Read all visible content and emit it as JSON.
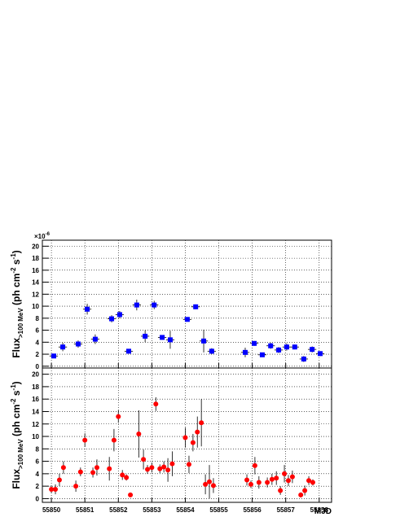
{
  "chart_data": [
    {
      "type": "scatter",
      "scale_label": [
        "×10",
        "-6"
      ],
      "ylabel": [
        {
          "text": "Flux"
        },
        {
          "text": ">100 MeV",
          "sub": true
        },
        {
          "text": " (ph cm"
        },
        {
          "text": "-2",
          "sup": true
        },
        {
          "text": " s"
        },
        {
          "text": "-1",
          "sup": true
        },
        {
          "text": ")"
        }
      ],
      "xlim": [
        55849.73,
        55858.37
      ],
      "ylim": [
        -0.3,
        21
      ],
      "xticks": [
        55850,
        55851,
        55852,
        55853,
        55854,
        55855,
        55856,
        55857,
        55858
      ],
      "yticks": [
        0,
        2,
        4,
        6,
        8,
        10,
        12,
        14,
        16,
        18,
        20
      ],
      "grid": true,
      "series": [
        {
          "color": "#0000ff",
          "marker": "square",
          "xerr": 0.125,
          "x": [
            55850.07,
            55850.34,
            55850.8,
            55851.07,
            55851.31,
            55851.8,
            55852.04,
            55852.31,
            55852.55,
            55852.8,
            55853.07,
            55853.31,
            55853.55,
            55854.06,
            55854.31,
            55854.55,
            55854.79,
            55855.79,
            55856.06,
            55856.3,
            55856.55,
            55856.79,
            55857.03,
            55857.27,
            55857.54,
            55857.79,
            55858.03
          ],
          "values": [
            1.7,
            3.2,
            3.7,
            9.5,
            4.5,
            7.9,
            8.6,
            2.5,
            10.2,
            5.0,
            10.2,
            4.8,
            4.4,
            7.8,
            9.9,
            4.2,
            2.5,
            2.3,
            3.8,
            1.9,
            3.4,
            2.7,
            3.2,
            3.2,
            1.2,
            2.8,
            2.1
          ],
          "errors": [
            0.3,
            0.7,
            0.6,
            0.9,
            0.8,
            0.6,
            0.6,
            0.3,
            0.9,
            1.0,
            0.7,
            0.4,
            1.5,
            0.3,
            0.4,
            1.9,
            0.5,
            0.8,
            0.4,
            0.3,
            0.5,
            0.5,
            0.6,
            0.4,
            0.5,
            0.5,
            0.4
          ]
        }
      ]
    },
    {
      "type": "scatter",
      "xlabel": "MJD",
      "ylabel": [
        {
          "text": "Flux"
        },
        {
          "text": ">100 MeV",
          "sub": true
        },
        {
          "text": " (ph cm"
        },
        {
          "text": "-2",
          "sup": true
        },
        {
          "text": " s"
        },
        {
          "text": "-1",
          "sup": true
        },
        {
          "text": ")"
        }
      ],
      "xlim": [
        55849.73,
        55858.37
      ],
      "ylim": [
        -0.6,
        21
      ],
      "xticks": [
        55850,
        55851,
        55852,
        55853,
        55854,
        55855,
        55856,
        55857,
        55858
      ],
      "yticks": [
        0,
        2,
        4,
        6,
        8,
        10,
        12,
        14,
        16,
        18,
        20
      ],
      "grid": true,
      "series": [
        {
          "color": "#ff0000",
          "marker": "circle",
          "x": [
            55850.0,
            55850.12,
            55850.24,
            55850.36,
            55850.73,
            55850.87,
            55851.0,
            55851.24,
            55851.36,
            55851.73,
            55851.87,
            55852.0,
            55852.12,
            55852.24,
            55852.36,
            55852.61,
            55852.75,
            55852.87,
            55853.0,
            55853.12,
            55853.24,
            55853.36,
            55853.48,
            55853.61,
            55854.0,
            55854.11,
            55854.23,
            55854.36,
            55854.48,
            55854.6,
            55854.72,
            55854.84,
            55855.84,
            55855.96,
            55856.08,
            55856.2,
            55856.45,
            55856.59,
            55856.72,
            55856.84,
            55856.96,
            55857.08,
            55857.2,
            55857.45,
            55857.57,
            55857.69,
            55857.81
          ],
          "values": [
            1.5,
            1.5,
            3.0,
            5.0,
            2.0,
            4.3,
            9.4,
            4.2,
            5.0,
            4.8,
            9.4,
            13.2,
            3.8,
            3.4,
            0.6,
            10.4,
            6.3,
            4.7,
            5.0,
            15.2,
            4.8,
            5.1,
            4.6,
            5.6,
            9.8,
            5.5,
            9.0,
            10.7,
            12.2,
            2.3,
            2.7,
            2.1,
            3.0,
            2.3,
            5.3,
            2.6,
            2.6,
            3.1,
            3.3,
            1.3,
            4.0,
            2.9,
            3.5,
            0.6,
            1.3,
            2.9,
            2.6
          ],
          "errors": [
            0.6,
            0.8,
            1.0,
            1.0,
            0.9,
            0.7,
            1.1,
            0.8,
            1.3,
            1.9,
            1.8,
            1.0,
            0.8,
            0.5,
            0.3,
            3.8,
            1.6,
            0.7,
            0.8,
            1.1,
            0.7,
            0.9,
            1.9,
            2.0,
            1.6,
            1.4,
            1.4,
            2.5,
            3.8,
            1.6,
            2.7,
            1.2,
            0.9,
            0.6,
            1.4,
            1.0,
            0.8,
            0.9,
            1.1,
            0.7,
            1.4,
            0.9,
            1.0,
            0.4,
            0.8,
            0.7,
            0.5
          ]
        }
      ]
    }
  ]
}
